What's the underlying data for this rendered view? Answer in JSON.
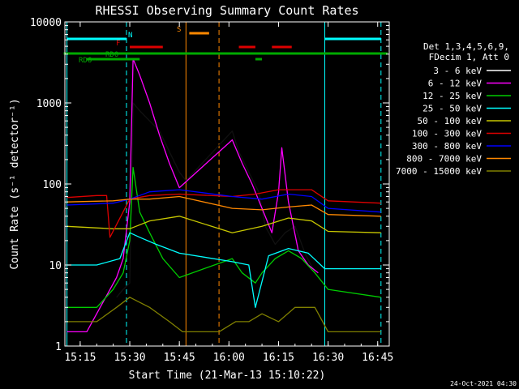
{
  "chart_data": {
    "type": "line",
    "title": "RHESSI Observing Summary Count Rates",
    "xlabel": "Start Time (21-Mar-13 15:10:22)",
    "ylabel": "Count Rate (s⁻¹ detector⁻¹)",
    "x_scale": "time",
    "y_scale": "log",
    "xlim": [
      "15:10:22",
      "16:48:30"
    ],
    "ylim": [
      1,
      10000
    ],
    "x_ticks": [
      "15:15",
      "15:30",
      "15:45",
      "16:00",
      "16:15",
      "16:30",
      "16:45"
    ],
    "y_ticks": [
      "1",
      "10",
      "100",
      "1000",
      "10000"
    ],
    "timestamp": "24-Oct-2021 04:30",
    "legend": {
      "placement": "right",
      "header": [
        "Det 1,3,4,5,6,9,",
        "FDecim 1, Att 0"
      ],
      "entries": [
        {
          "label": "3 - 6 keV",
          "color": "#000000"
        },
        {
          "label": "6 - 12 keV",
          "color": "#ff00ff"
        },
        {
          "label": "12 - 25 keV",
          "color": "#00cc00"
        },
        {
          "label": "25 - 50 keV",
          "color": "#00ffff"
        },
        {
          "label": "50 - 100 keV",
          "color": "#c8c800"
        },
        {
          "label": "100 - 300 keV",
          "color": "#dd0000"
        },
        {
          "label": "300 - 800 keV",
          "color": "#0000ff"
        },
        {
          "label": "800 - 7000 keV",
          "color": "#ff8800"
        },
        {
          "label": "7000 - 15000 keV",
          "color": "#808000"
        }
      ]
    },
    "series": [
      {
        "name": "3 - 6 keV",
        "color": "#000000",
        "x": [
          "15:26",
          "15:28",
          "15:30",
          "15:31",
          "15:33",
          "15:36",
          "15:39",
          "15:42",
          "15:45",
          "15:47",
          "16:01",
          "16:03",
          "16:06",
          "16:09",
          "16:11",
          "16:14",
          "16:17",
          "16:20",
          "16:23",
          "16:26"
        ],
        "y": [
          4,
          5,
          6,
          1000,
          800,
          600,
          450,
          250,
          140,
          110,
          450,
          250,
          140,
          80,
          30,
          18,
          25,
          30,
          14,
          8
        ]
      },
      {
        "name": "6 - 12 keV",
        "color": "#ff00ff",
        "x": [
          "15:11",
          "15:17",
          "15:26",
          "15:28",
          "15:30",
          "15:31",
          "15:33",
          "15:36",
          "15:39",
          "15:42",
          "15:45",
          "16:01",
          "16:04",
          "16:07",
          "16:10",
          "16:13",
          "16:15",
          "16:16",
          "16:18",
          "16:21",
          "16:24",
          "16:27"
        ],
        "y": [
          1.5,
          1.5,
          7,
          12,
          60,
          3500,
          2200,
          1000,
          400,
          180,
          90,
          350,
          180,
          100,
          50,
          25,
          80,
          280,
          60,
          15,
          10,
          8
        ]
      },
      {
        "name": "12 - 25 keV",
        "color": "#00cc00",
        "x": [
          "15:11",
          "15:20",
          "15:25",
          "15:28",
          "15:30",
          "15:31",
          "15:33",
          "15:36",
          "15:40",
          "15:45",
          "16:01",
          "16:04",
          "16:08",
          "16:10",
          "16:14",
          "16:18",
          "16:22",
          "16:26",
          "16:30",
          "16:46"
        ],
        "y": [
          3,
          3,
          5,
          8,
          20,
          160,
          45,
          25,
          12,
          7,
          12,
          8,
          6,
          8,
          12,
          15,
          12,
          8,
          5,
          4
        ]
      },
      {
        "name": "25 - 50 keV",
        "color": "#00ffff",
        "x": [
          "15:11",
          "15:20",
          "15:27",
          "15:30",
          "15:33",
          "15:38",
          "15:45",
          "16:01",
          "16:06",
          "16:08",
          "16:12",
          "16:18",
          "16:24",
          "16:29",
          "16:46"
        ],
        "y": [
          10,
          10,
          12,
          25,
          22,
          18,
          14,
          11,
          10,
          3,
          13,
          16,
          14,
          9,
          9
        ]
      },
      {
        "name": "50 - 100 keV",
        "color": "#c8c800",
        "x": [
          "15:11",
          "15:25",
          "15:30",
          "15:36",
          "15:45",
          "16:01",
          "16:10",
          "16:18",
          "16:25",
          "16:30",
          "16:46"
        ],
        "y": [
          30,
          28,
          28,
          35,
          40,
          25,
          30,
          38,
          35,
          26,
          25
        ]
      },
      {
        "name": "100 - 300 keV",
        "color": "#dd0000",
        "x": [
          "15:11",
          "15:20",
          "15:23",
          "15:24",
          "15:30",
          "15:36",
          "15:45",
          "16:01",
          "16:08",
          "16:15",
          "16:25",
          "16:30",
          "16:46"
        ],
        "y": [
          68,
          72,
          72,
          22,
          65,
          72,
          75,
          70,
          75,
          85,
          85,
          62,
          58
        ]
      },
      {
        "name": "300 - 800 keV",
        "color": "#0000ff",
        "x": [
          "15:11",
          "15:25",
          "15:30",
          "15:36",
          "15:45",
          "16:01",
          "16:10",
          "16:18",
          "16:25",
          "16:30",
          "16:46"
        ],
        "y": [
          55,
          58,
          65,
          80,
          85,
          70,
          65,
          75,
          70,
          50,
          45
        ]
      },
      {
        "name": "800 - 7000 keV",
        "color": "#ff8800",
        "x": [
          "15:11",
          "15:25",
          "15:30",
          "15:36",
          "15:45",
          "16:01",
          "16:10",
          "16:18",
          "16:25",
          "16:30",
          "16:46"
        ],
        "y": [
          60,
          62,
          65,
          65,
          70,
          50,
          48,
          52,
          55,
          42,
          40
        ]
      },
      {
        "name": "7000 - 15000 keV",
        "color": "#808000",
        "x": [
          "15:11",
          "15:20",
          "15:26",
          "15:30",
          "15:36",
          "15:42",
          "15:46",
          "15:57",
          "16:02",
          "16:06",
          "16:10",
          "16:15",
          "16:20",
          "16:26",
          "16:30",
          "16:46"
        ],
        "y": [
          2,
          2,
          3,
          4,
          3,
          2,
          1.5,
          1.5,
          2,
          2,
          2.5,
          2,
          3,
          3,
          1.5,
          1.5
        ]
      }
    ],
    "flags": [
      {
        "label": "N",
        "color": "#00ffff",
        "segments": [
          [
            "15:11",
            "15:29"
          ],
          [
            "16:29",
            "16:46"
          ]
        ]
      },
      {
        "label": "S",
        "color": "#ff8800",
        "segments": [
          [
            "15:48",
            "15:54"
          ]
        ]
      },
      {
        "label": "F",
        "color": "#dd0000",
        "segments": [
          [
            "15:30",
            "15:40"
          ],
          [
            "16:03",
            "16:08"
          ],
          [
            "16:13",
            "16:19"
          ]
        ]
      },
      {
        "label": "RD0",
        "color": "#00aa00",
        "segments": [
          [
            "15:10",
            "16:48"
          ]
        ]
      },
      {
        "label": "RD6",
        "color": "#00aa00",
        "segments": [
          [
            "15:17",
            "15:33"
          ],
          [
            "16:08",
            "16:10"
          ]
        ]
      }
    ],
    "markers": [
      {
        "time": "15:11",
        "color": "#00ffff",
        "style": "solid"
      },
      {
        "time": "15:29",
        "color": "#00ffff",
        "style": "dashed"
      },
      {
        "time": "15:47",
        "color": "#ff8800",
        "style": "solid"
      },
      {
        "time": "15:57",
        "color": "#ff8800",
        "style": "dashed"
      },
      {
        "time": "16:29",
        "color": "#00ffff",
        "style": "solid"
      },
      {
        "time": "16:46",
        "color": "#00ffff",
        "style": "dashed"
      }
    ]
  }
}
